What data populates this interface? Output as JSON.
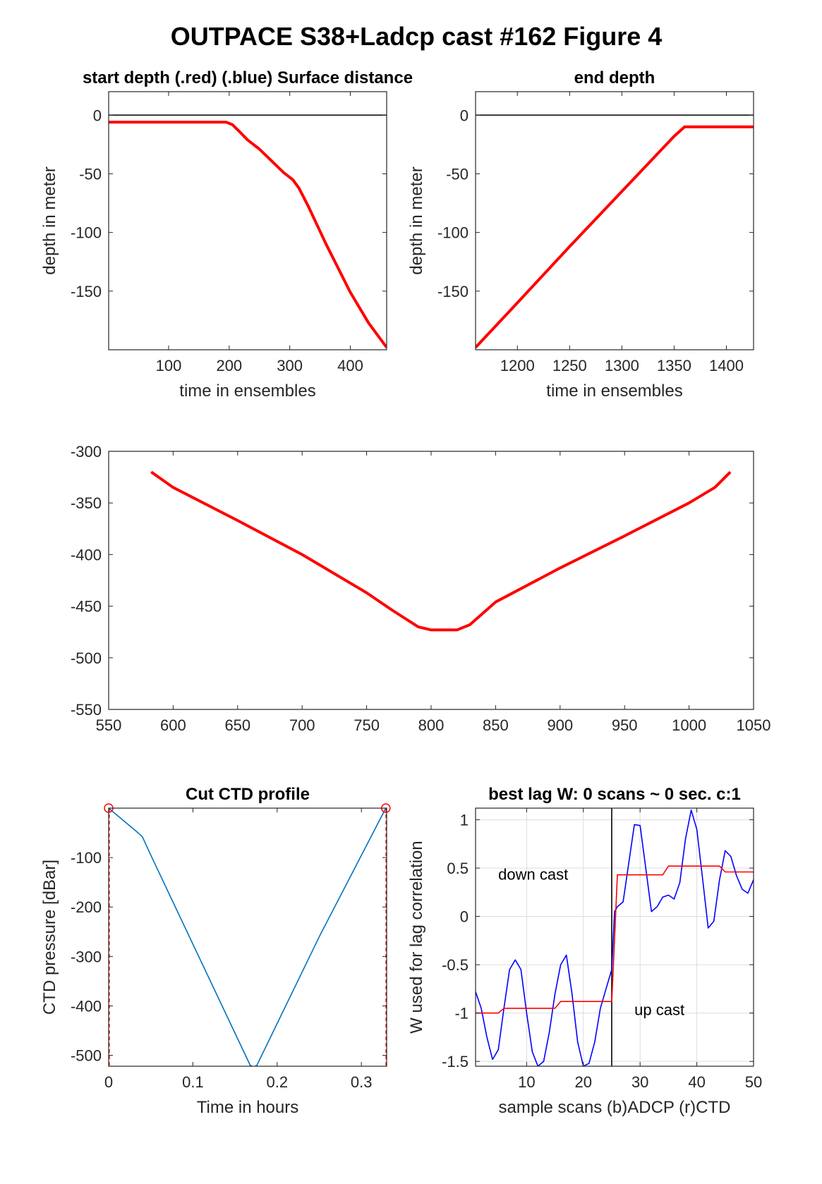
{
  "figure_title": "OUTPACE S38+Ladcp cast #162   Figure 4",
  "chart_data": [
    {
      "id": "start",
      "type": "line",
      "title": "start depth (.red) (.blue) Surface distance",
      "xlabel": "time in ensembles",
      "ylabel": "depth in meter",
      "xlim": [
        1,
        460
      ],
      "ylim": [
        -200,
        20
      ],
      "xticks": [
        100,
        200,
        300,
        400
      ],
      "yticks": [
        0,
        -50,
        -100,
        -150
      ],
      "hlines": [
        {
          "y": 0,
          "color": "#000000"
        }
      ],
      "series": [
        {
          "color": "#ff0000",
          "x": [
            1,
            100,
            195,
            205,
            215,
            230,
            250,
            270,
            290,
            305,
            315,
            330,
            360,
            400,
            430,
            460
          ],
          "y": [
            -6,
            -6,
            -6,
            -8,
            -13,
            -21,
            -29,
            -39,
            -49,
            -55,
            -62,
            -77,
            -110,
            -151,
            -177,
            -198
          ]
        }
      ]
    },
    {
      "id": "end",
      "type": "line",
      "title": "end depth",
      "xlabel": "time in ensembles",
      "ylabel": "depth in meter",
      "xlim": [
        1160,
        1426
      ],
      "ylim": [
        -200,
        20
      ],
      "xticks": [
        1200,
        1250,
        1300,
        1350,
        1400
      ],
      "yticks": [
        0,
        -50,
        -100,
        -150
      ],
      "hlines": [
        {
          "y": 0,
          "color": "#000000"
        }
      ],
      "series": [
        {
          "color": "#ff0000",
          "x": [
            1160,
            1200,
            1250,
            1300,
            1350,
            1360,
            1426
          ],
          "y": [
            -198,
            -160,
            -112,
            -65,
            -18,
            -10,
            -10
          ]
        }
      ]
    },
    {
      "id": "profile",
      "type": "line",
      "title": "",
      "xlabel": "",
      "ylabel": "",
      "xlim": [
        550,
        1050
      ],
      "ylim": [
        -550,
        -300
      ],
      "xticks": [
        550,
        600,
        650,
        700,
        750,
        800,
        850,
        900,
        950,
        1000,
        1050
      ],
      "yticks": [
        -300,
        -350,
        -400,
        -450,
        -500,
        -550
      ],
      "series": [
        {
          "color": "#ff0000",
          "x": [
            583,
            600,
            650,
            700,
            750,
            770,
            790,
            800,
            820,
            830,
            850,
            900,
            950,
            1000,
            1020,
            1032
          ],
          "y": [
            -320,
            -335,
            -367,
            -400,
            -437,
            -454,
            -470,
            -473,
            -473,
            -468,
            -446,
            -413,
            -382,
            -350,
            -335,
            -320
          ]
        }
      ]
    },
    {
      "id": "ctd",
      "type": "line",
      "title": "Cut CTD profile",
      "xlabel": "Time in hours",
      "ylabel": "CTD pressure [dBar]",
      "xlim": [
        0,
        0.33
      ],
      "ylim": [
        -522,
        0
      ],
      "xticks": [
        0,
        0.1,
        0.2,
        0.3
      ],
      "yticks": [
        -100,
        -200,
        -300,
        -400,
        -500
      ],
      "vlines": [
        {
          "x": 0.0005,
          "color": "#ff0000",
          "dashed": true
        },
        {
          "x": 0.3295,
          "color": "#ff0000",
          "dashed": true
        }
      ],
      "markers": [
        {
          "x": 0.0,
          "y": 0,
          "color": "#ff0000"
        },
        {
          "x": 0.329,
          "y": 0,
          "color": "#ff0000"
        }
      ],
      "series": [
        {
          "color": "#0072bd",
          "x": [
            0,
            0.035,
            0.04,
            0.05,
            0.168,
            0.172,
            0.176,
            0.25,
            0.329
          ],
          "y": [
            0,
            -50,
            -58,
            -95,
            -520,
            -524,
            -520,
            -260,
            0
          ]
        }
      ]
    },
    {
      "id": "lag",
      "type": "line",
      "title": "best lag W: 0 scans ~ 0 sec.  c:1",
      "xlabel": "sample scans (b)ADCP (r)CTD",
      "ylabel": "W used for lag correlation",
      "xlim": [
        1,
        50
      ],
      "ylim": [
        -1.55,
        1.12
      ],
      "xticks": [
        10,
        20,
        30,
        40,
        50
      ],
      "yticks": [
        1,
        0.5,
        0,
        -0.5,
        -1,
        -1.5
      ],
      "grid": true,
      "vlines": [
        {
          "x": 25,
          "color": "#000000"
        }
      ],
      "annotations": [
        {
          "text": "down cast",
          "x": 5,
          "y": 0.38
        },
        {
          "text": "up cast",
          "x": 29,
          "y": -1.02
        }
      ],
      "series": [
        {
          "name": "(b)ADCP",
          "color": "#0000ff",
          "x": [
            1,
            2,
            3,
            4,
            5,
            6,
            7,
            8,
            9,
            10,
            11,
            12,
            13,
            14,
            15,
            16,
            17,
            18,
            19,
            20,
            21,
            22,
            23,
            24,
            25,
            25.5,
            26,
            27,
            28,
            29,
            30,
            31,
            32,
            33,
            34,
            35,
            36,
            37,
            38,
            39,
            40,
            41,
            42,
            43,
            44,
            45,
            46,
            47,
            48,
            49,
            50
          ],
          "y": [
            -0.78,
            -0.95,
            -1.25,
            -1.48,
            -1.38,
            -0.95,
            -0.55,
            -0.45,
            -0.55,
            -1.0,
            -1.4,
            -1.55,
            -1.5,
            -1.2,
            -0.8,
            -0.5,
            -0.4,
            -0.8,
            -1.3,
            -1.55,
            -1.52,
            -1.3,
            -0.95,
            -0.75,
            -0.55,
            0.05,
            0.1,
            0.15,
            0.55,
            0.95,
            0.94,
            0.5,
            0.05,
            0.1,
            0.2,
            0.22,
            0.18,
            0.35,
            0.8,
            1.1,
            0.9,
            0.4,
            -0.12,
            -0.05,
            0.38,
            0.68,
            0.62,
            0.42,
            0.28,
            0.24,
            0.38
          ]
        },
        {
          "name": "(r)CTD",
          "color": "#ff0000",
          "x": [
            1,
            5,
            6,
            15,
            16,
            25,
            25.3,
            26,
            27,
            34,
            35,
            44,
            45,
            50
          ],
          "y": [
            -1.0,
            -1.0,
            -0.95,
            -0.95,
            -0.88,
            -0.88,
            -0.5,
            0.43,
            0.43,
            0.43,
            0.52,
            0.52,
            0.46,
            0.46
          ]
        }
      ]
    }
  ]
}
